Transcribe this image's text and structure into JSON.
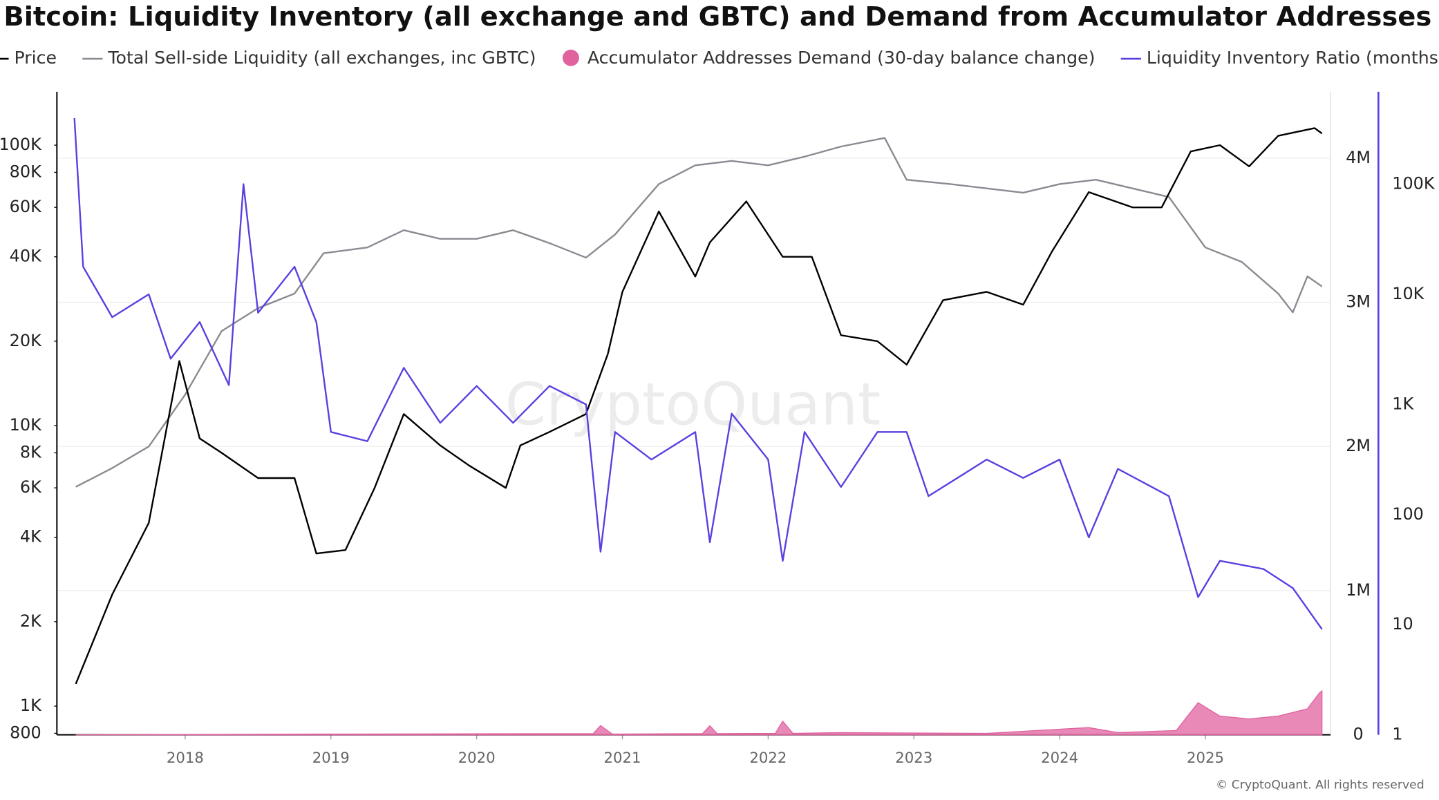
{
  "chart_data": {
    "type": "line",
    "title": "Bitcoin: Liquidity Inventory (all exchange and GBTC) and Demand from Accumulator Addresses",
    "watermark": "CryptoQuant",
    "credit": "© CryptoQuant. All rights reserved",
    "xlim": [
      2017.12,
      2025.86
    ],
    "xticks": [
      2018,
      2019,
      2020,
      2021,
      2022,
      2023,
      2024,
      2025
    ],
    "ylim": [
      790,
      155000
    ],
    "log_y": true,
    "yticks": [
      800,
      {
        "value": 1000,
        "label": "1K"
      },
      {
        "value": 2000,
        "label": "2K"
      },
      {
        "value": 4000,
        "label": "4K"
      },
      {
        "value": 6000,
        "label": "6K"
      },
      {
        "value": 8000,
        "label": "8K"
      },
      {
        "value": 10000,
        "label": "10K"
      },
      {
        "value": 20000,
        "label": "20K"
      },
      {
        "value": 40000,
        "label": "40K"
      },
      {
        "value": 60000,
        "label": "60K"
      },
      {
        "value": 80000,
        "label": "80K"
      },
      {
        "value": 100000,
        "label": "100K"
      }
    ],
    "y2lim": [
      0,
      4460000
    ],
    "y2ticks": [
      0,
      {
        "value": 1000000,
        "label": "1M"
      },
      {
        "value": 2000000,
        "label": "2M"
      },
      {
        "value": 3000000,
        "label": "3M"
      },
      {
        "value": 4000000,
        "label": "4M"
      }
    ],
    "y3lim": [
      1,
      690000
    ],
    "log_y3": true,
    "y3ticks": [
      1,
      10,
      100,
      {
        "value": 1000,
        "label": "1K"
      },
      {
        "value": 10000,
        "label": "10K"
      },
      {
        "value": 100000,
        "label": "100K"
      }
    ],
    "y3_axis_color": "#5b3fe0",
    "grid": "y2",
    "series": [
      {
        "name": "Price",
        "color": "#000000",
        "axis": "y",
        "style": "line",
        "x": [
          2017.25,
          2017.5,
          2017.75,
          2017.96,
          2018.1,
          2018.25,
          2018.5,
          2018.75,
          2018.9,
          2019.1,
          2019.3,
          2019.5,
          2019.75,
          2019.95,
          2020.2,
          2020.3,
          2020.5,
          2020.75,
          2020.9,
          2021.0,
          2021.25,
          2021.5,
          2021.6,
          2021.85,
          2022.1,
          2022.3,
          2022.5,
          2022.75,
          2022.95,
          2023.2,
          2023.5,
          2023.75,
          2023.95,
          2024.2,
          2024.5,
          2024.7,
          2024.9,
          2025.1,
          2025.3,
          2025.5,
          2025.75,
          2025.8
        ],
        "values": [
          1200,
          2500,
          4500,
          17000,
          9000,
          8000,
          6500,
          6500,
          3500,
          3600,
          6000,
          11000,
          8500,
          7200,
          6000,
          8500,
          9500,
          11000,
          18000,
          30000,
          58000,
          34000,
          45000,
          63000,
          40000,
          40000,
          21000,
          20000,
          16500,
          28000,
          30000,
          27000,
          42000,
          68000,
          60000,
          60000,
          95000,
          100000,
          84000,
          108000,
          115000,
          110000
        ]
      },
      {
        "name": "Total Sell-side Liquidity (all exchanges, inc GBTC)",
        "color": "#8a8a92",
        "axis": "y2",
        "style": "line",
        "x": [
          2017.25,
          2017.5,
          2017.75,
          2018.0,
          2018.25,
          2018.5,
          2018.75,
          2018.95,
          2019.25,
          2019.5,
          2019.75,
          2020.0,
          2020.25,
          2020.5,
          2020.75,
          2020.95,
          2021.25,
          2021.5,
          2021.75,
          2022.0,
          2022.25,
          2022.5,
          2022.8,
          2022.95,
          2023.25,
          2023.5,
          2023.75,
          2024.0,
          2024.25,
          2024.5,
          2024.75,
          2025.0,
          2025.25,
          2025.5,
          2025.6,
          2025.7,
          2025.8
        ],
        "values": [
          1720000,
          1850000,
          2000000,
          2360000,
          2800000,
          2960000,
          3060000,
          3340000,
          3380000,
          3500000,
          3440000,
          3440000,
          3500000,
          3410000,
          3310000,
          3470000,
          3820000,
          3950000,
          3980000,
          3950000,
          4010000,
          4080000,
          4140000,
          3850000,
          3820000,
          3790000,
          3760000,
          3820000,
          3850000,
          3790000,
          3730000,
          3380000,
          3280000,
          3060000,
          2930000,
          3180000,
          3110000
        ]
      },
      {
        "name": "Accumulator Addresses Demand (30-day balance change)",
        "color": "#e0629f",
        "axis": "y2",
        "style": "area",
        "x": [
          2017.25,
          2018.9,
          2020.8,
          2020.85,
          2020.93,
          2021.55,
          2021.6,
          2021.65,
          2022.05,
          2022.1,
          2022.17,
          2022.5,
          2023.5,
          2024.2,
          2024.4,
          2024.8,
          2024.95,
          2025.1,
          2025.3,
          2025.5,
          2025.7,
          2025.78,
          2025.8
        ],
        "values": [
          0,
          5000,
          8000,
          64000,
          5000,
          8000,
          63000,
          8000,
          10000,
          95000,
          10000,
          15000,
          10000,
          50000,
          15000,
          30000,
          223000,
          130000,
          110000,
          130000,
          180000,
          287000,
          305000
        ]
      },
      {
        "name": "Liquidity Inventory Ratio (months)",
        "color": "#5b3fe0",
        "axis": "y3",
        "style": "line",
        "x": [
          2017.24,
          2017.3,
          2017.5,
          2017.75,
          2017.9,
          2018.1,
          2018.3,
          2018.4,
          2018.5,
          2018.75,
          2018.9,
          2019.0,
          2019.25,
          2019.5,
          2019.75,
          2020.0,
          2020.25,
          2020.5,
          2020.75,
          2020.85,
          2020.95,
          2021.2,
          2021.5,
          2021.6,
          2021.75,
          2022.0,
          2022.1,
          2022.25,
          2022.5,
          2022.75,
          2022.95,
          2023.1,
          2023.5,
          2023.75,
          2024.0,
          2024.2,
          2024.4,
          2024.75,
          2024.95,
          2025.1,
          2025.4,
          2025.6,
          2025.8
        ],
        "values": [
          398000,
          17800,
          6200,
          10000,
          2600,
          5600,
          1500,
          100000,
          6800,
          17800,
          5600,
          562,
          464,
          2150,
          681,
          1470,
          681,
          1470,
          1000,
          46,
          562,
          316,
          562,
          56,
          825,
          316,
          38,
          562,
          178,
          562,
          562,
          147,
          316,
          215,
          316,
          62,
          260,
          147,
          17.8,
          38,
          32,
          21.5,
          9.1
        ]
      }
    ]
  }
}
